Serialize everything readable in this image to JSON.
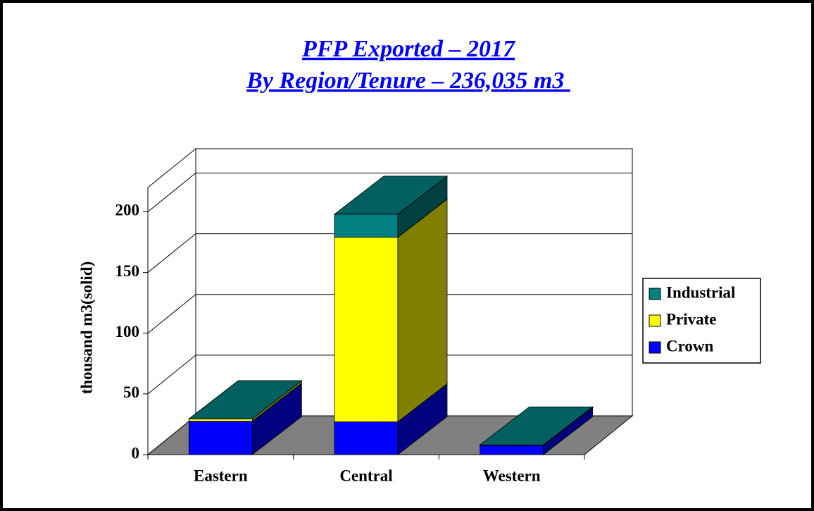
{
  "chart_data": {
    "type": "bar",
    "stacked": true,
    "title": "PFP Exported – 2017",
    "subtitle": "By Region/Tenure – 236,035 m3 ",
    "y_label": "thousand m3(solid)",
    "categories": [
      "Eastern",
      "Central",
      "Western"
    ],
    "series": [
      {
        "name": "Crown",
        "color": "#0000ff",
        "values": [
          27.5,
          27,
          7.5
        ]
      },
      {
        "name": "Private",
        "color": "#ffff00",
        "values": [
          2,
          152,
          0
        ]
      },
      {
        "name": "Industrial",
        "color": "#008080",
        "values": [
          0,
          19,
          0.5
        ]
      }
    ],
    "ylim": [
      0,
      220
    ],
    "yticks": [
      0,
      50,
      100,
      150,
      200
    ],
    "grid": true,
    "legend": "right"
  }
}
